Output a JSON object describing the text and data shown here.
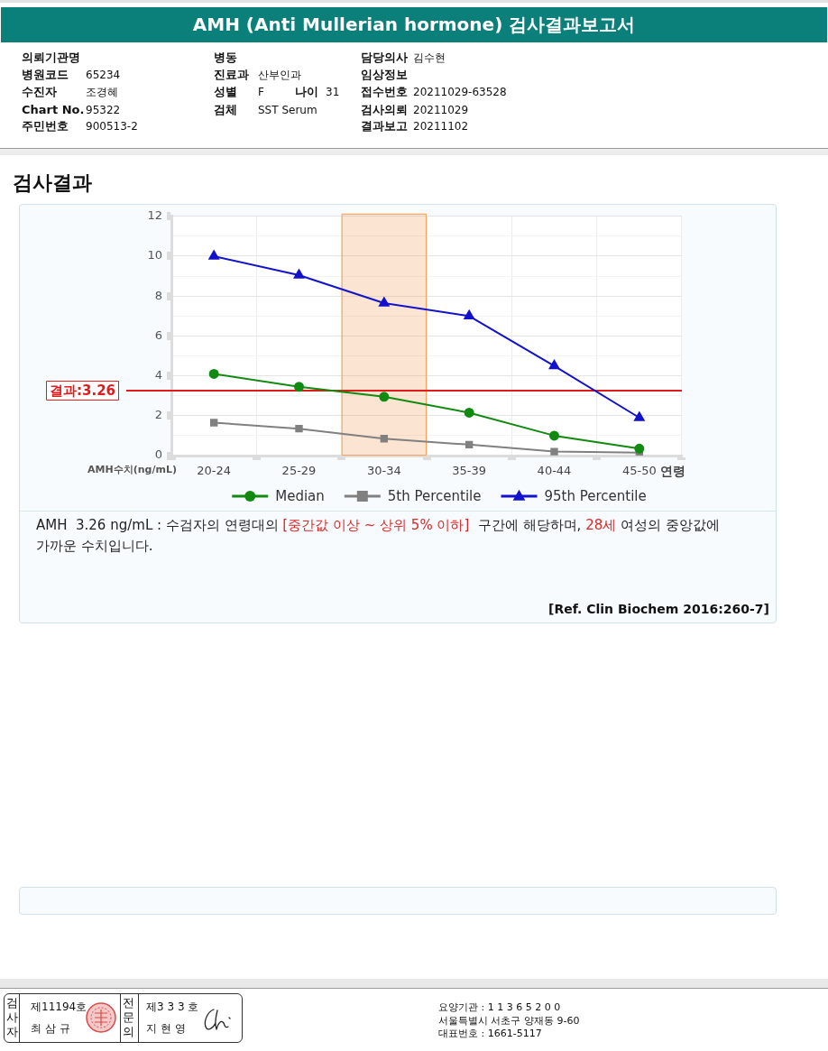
{
  "chart_data": {
    "type": "line",
    "title": "AMH (Anti Mullerian hormone) 검사결과보고서",
    "subtitle": "검사결과",
    "xlabel": "연령",
    "ylabel": "AMH수치(ng/mL)",
    "categories": [
      "20-24",
      "25-29",
      "30-34",
      "35-39",
      "40-44",
      "45-50"
    ],
    "series": [
      {
        "name": "Median",
        "color": "#118a11",
        "marker": "circle",
        "values": [
          4.1,
          3.45,
          2.95,
          2.15,
          1.0,
          0.35
        ]
      },
      {
        "name": "5th Percentile",
        "color": "#808080",
        "marker": "square",
        "values": [
          1.65,
          1.35,
          0.85,
          0.55,
          0.2,
          0.15
        ]
      },
      {
        "name": "95th Percentile",
        "color": "#1212cc",
        "marker": "triangle",
        "values": [
          10.0,
          9.05,
          7.65,
          7.0,
          4.5,
          1.9
        ]
      }
    ],
    "ylim": [
      0,
      12
    ],
    "yticks": [
      0,
      {
        "value": 1,
        "label": null
      },
      2,
      {
        "value": 3,
        "label": null
      },
      4,
      {
        "value": 5,
        "label": null
      },
      6,
      {
        "value": 7,
        "label": null
      },
      8,
      {
        "value": 9,
        "label": null
      },
      10,
      {
        "value": 11,
        "label": null
      },
      12
    ],
    "grid": true,
    "legend": "bottom",
    "ref_lines": [
      {
        "axis": "y",
        "value": 3.26,
        "label": "결과:3.26",
        "color": "#e01b1b"
      }
    ],
    "bands": [
      {
        "axis": "x",
        "from": "30-34",
        "to": "30-34",
        "color": "#f2a35e"
      }
    ],
    "annotations": [
      "의뢰기관명",
      "병동",
      "담당의사",
      "김수현",
      "병원코드",
      "65234",
      "진료과",
      "산부인과",
      "임상정보",
      "수진자",
      "조경혜",
      "성별",
      "F",
      "나이",
      "31",
      "접수번호",
      "20211029-63528",
      "Chart No.",
      "95322",
      "검체",
      "SST Serum",
      "검사의뢰",
      "20211029",
      "주민번호",
      "900513-2",
      "결과보고",
      "20211102",
      "AMH  3.26 ng/mL : 수검자의 연령대의",
      "[중간값 이상 ~ 상위 5% 이하]",
      " 구간에 해당하며,",
      "28세",
      "여성의 중앙값에 가까운 수치입니다.",
      "[Ref. Clin Biochem 2016:260-7]",
      "검사자",
      "제11194호",
      "최 삼 규",
      "전문의",
      "제3 3 3 호",
      "지 현 영",
      "요양기관 : 1 1 3 6 5 2 0 0",
      "서울특별시 서초구 양재동 9-60",
      "대표번호 : 1661-5117"
    ]
  }
}
